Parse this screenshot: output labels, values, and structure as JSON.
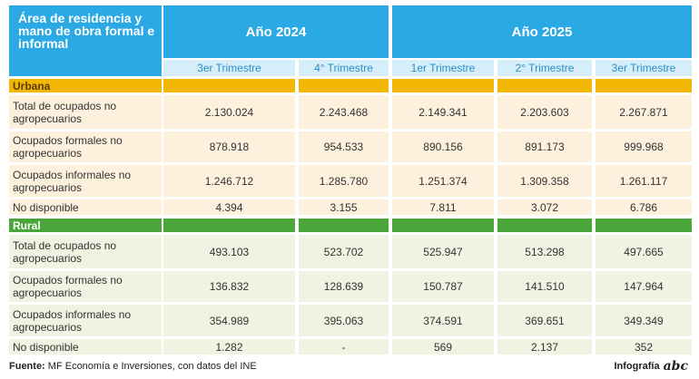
{
  "header": {
    "title": "Área de residencia y mano de obra formal e informal",
    "year_2024": "Año 2024",
    "year_2025": "Año 2025",
    "quarters": [
      "3er Trimestre",
      "4° Trimestre",
      "1er Trimestre",
      "2° Trimestre",
      "3er Trimestre"
    ]
  },
  "colors": {
    "header_blue": "#2aa9e4",
    "urbana_bar": "#f2b705",
    "rural_bar": "#4aa63a"
  },
  "sections": [
    {
      "label": "Urbana",
      "rows": [
        {
          "label": "Total de ocupados no agropecuarios",
          "values": [
            "2.130.024",
            "2.243.468",
            "2.149.341",
            "2.203.603",
            "2.267.871"
          ]
        },
        {
          "label": "Ocupados formales no  agropecuarios",
          "values": [
            "878.918",
            "954.533",
            "890.156",
            "891.173",
            "999.968"
          ]
        },
        {
          "label": "Ocupados informales no agropecuarios",
          "values": [
            "1.246.712",
            "1.285.780",
            "1.251.374",
            "1.309.358",
            "1.261.117"
          ]
        },
        {
          "label": "No disponible",
          "values": [
            "4.394",
            "3.155",
            "7.811",
            "3.072",
            "6.786"
          ]
        }
      ]
    },
    {
      "label": "Rural",
      "rows": [
        {
          "label": "Total de ocupados no agropecuarios",
          "values": [
            "493.103",
            "523.702",
            "525.947",
            "513.298",
            "497.665"
          ]
        },
        {
          "label": "Ocupados formales no  agropecuarios",
          "values": [
            "136.832",
            "128.639",
            "150.787",
            "141.510",
            "147.964"
          ]
        },
        {
          "label": "Ocupados informales no agropecuarios",
          "values": [
            "354.989",
            "395.063",
            "374.591",
            "369.651",
            "349.349"
          ]
        },
        {
          "label": "No disponible",
          "values": [
            "1.282",
            "-",
            "569",
            "2.137",
            "352"
          ]
        }
      ]
    }
  ],
  "footer": {
    "source_label": "Fuente:",
    "source_text": " MF Economía e Inversiones, con datos del INE",
    "brand_text": "Infografía",
    "logo": "abc"
  }
}
